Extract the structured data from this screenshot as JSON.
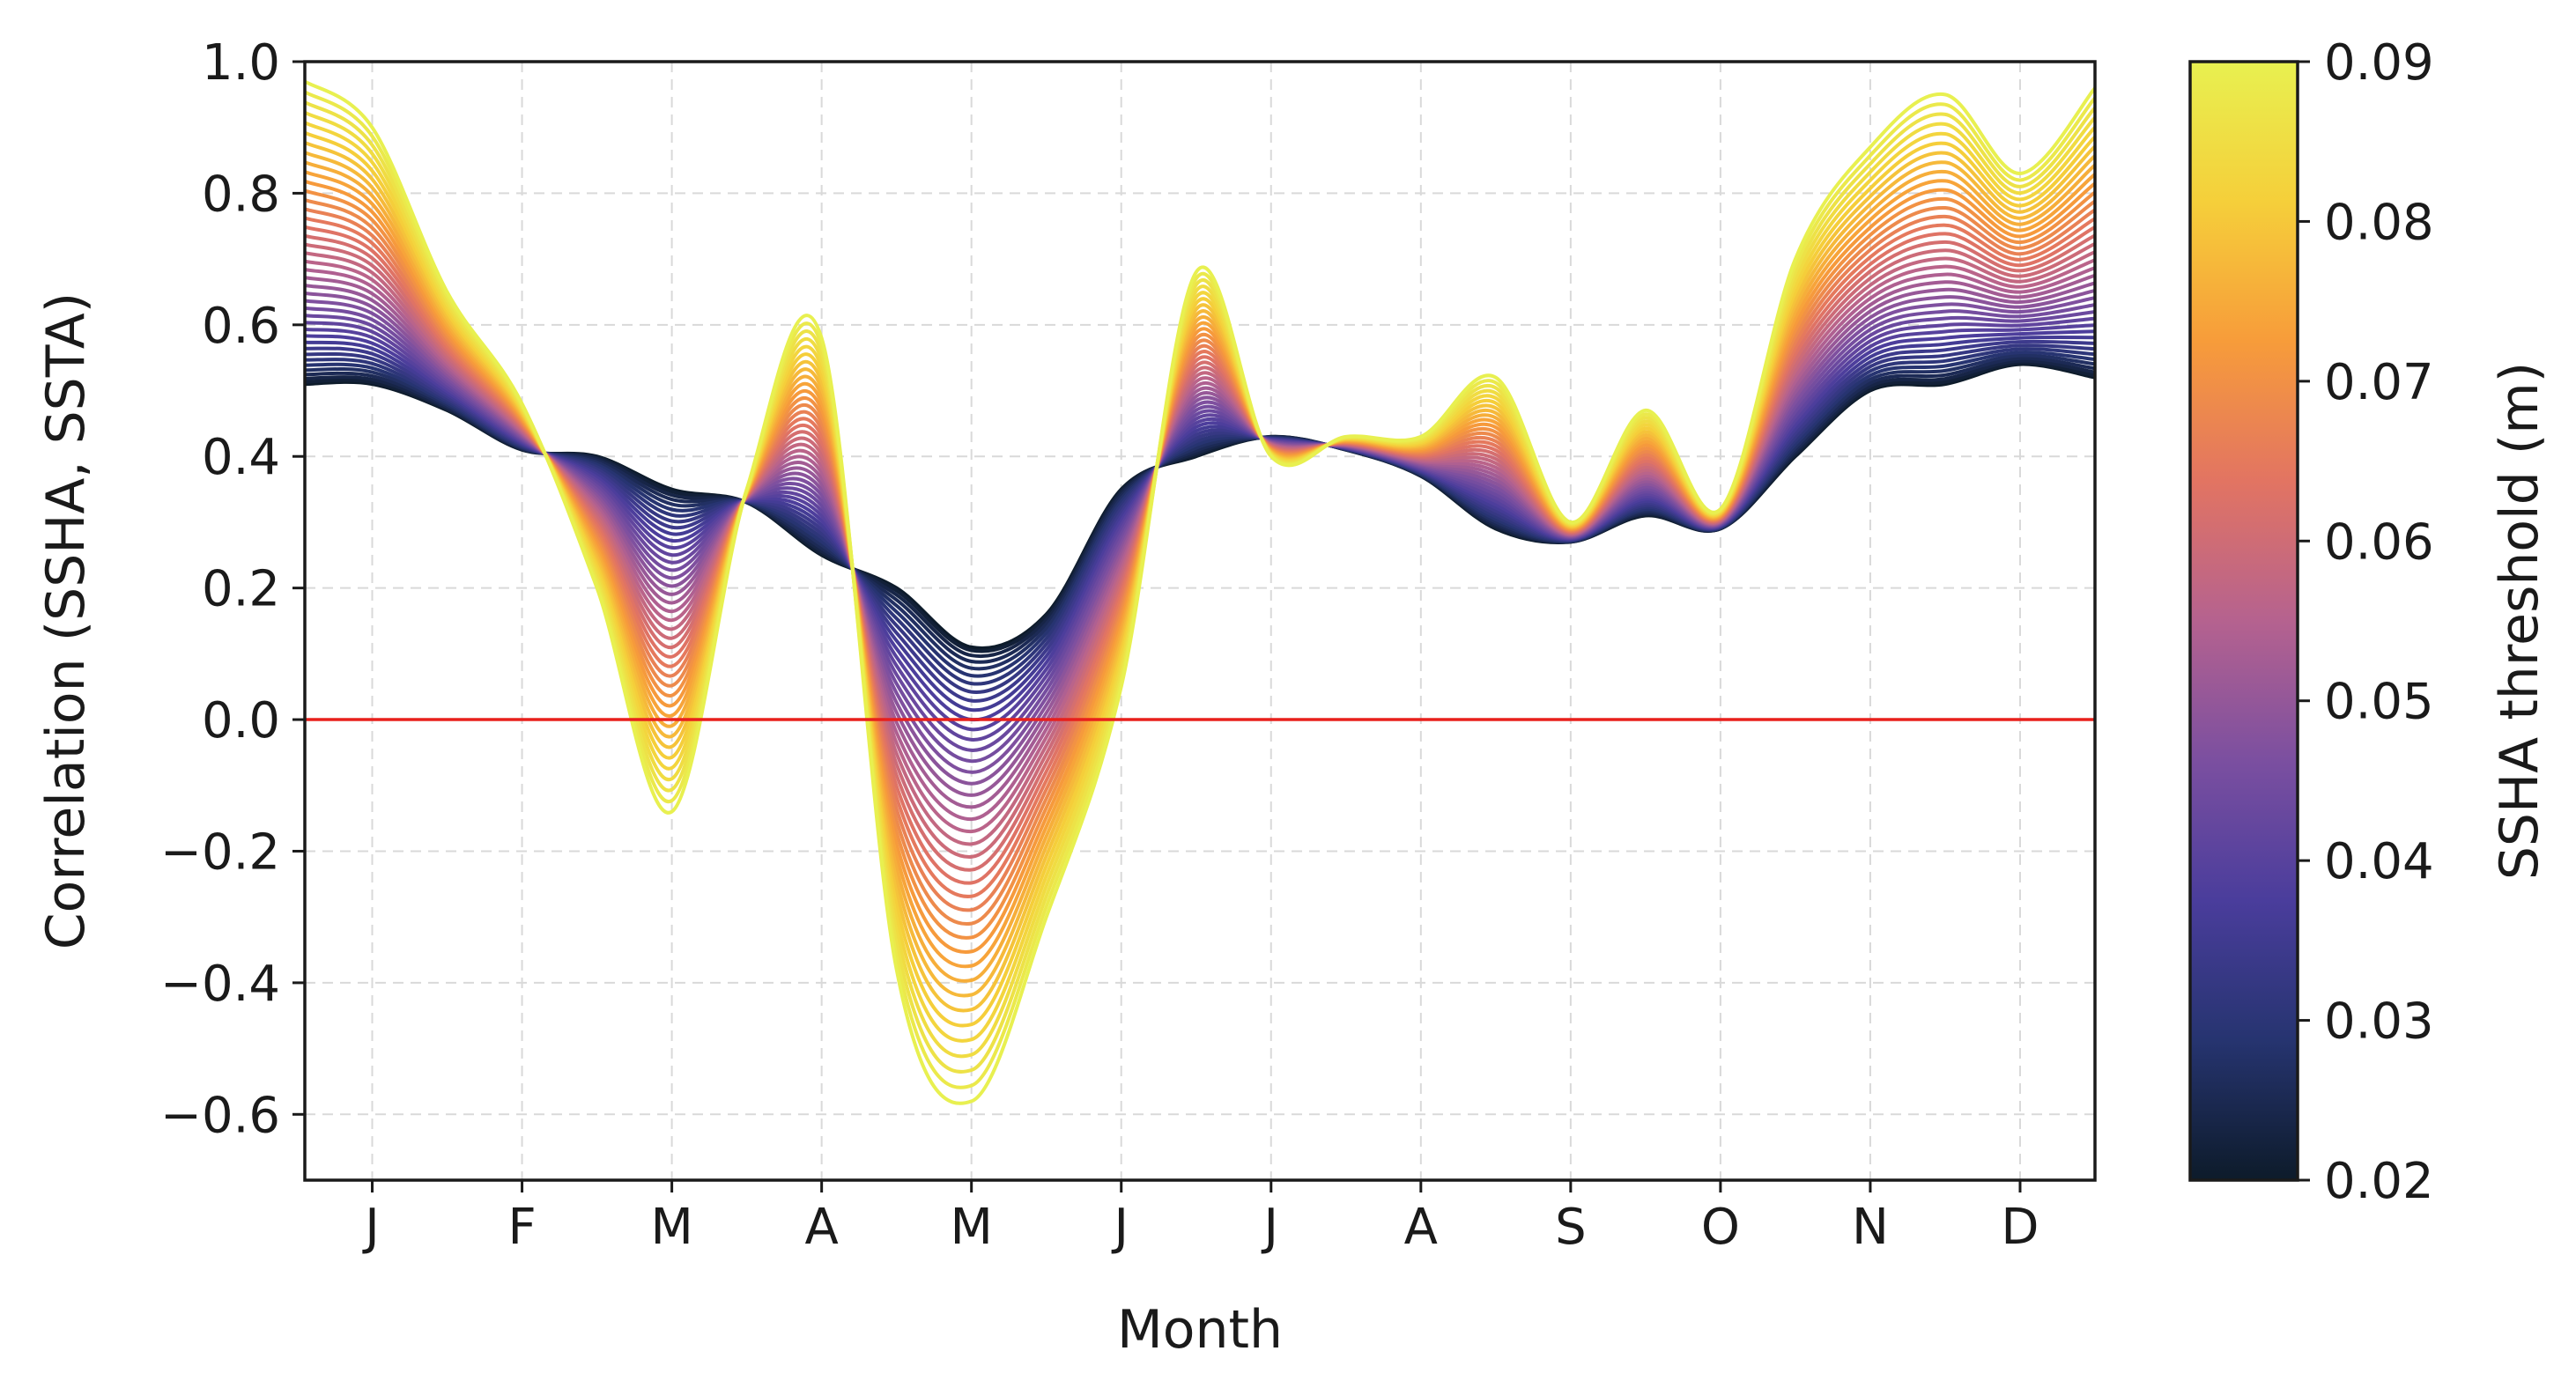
{
  "chart_data": {
    "type": "line",
    "title": "",
    "xlabel": "Month",
    "ylabel": "Correlation (SSHA, SSTA)",
    "x_tick_labels": [
      "J",
      "F",
      "M",
      "A",
      "M",
      "J",
      "J",
      "A",
      "S",
      "O",
      "N",
      "D"
    ],
    "xlim": [
      0.55,
      12.5
    ],
    "ylim": [
      -0.7,
      1.0
    ],
    "y_ticks": [
      -0.6,
      -0.4,
      -0.2,
      0.0,
      0.2,
      0.4,
      0.6,
      0.8,
      1.0
    ],
    "y_tick_labels": [
      "−0.6",
      "−0.4",
      "−0.2",
      "0.0",
      "0.2",
      "0.4",
      "0.6",
      "0.8",
      "1.0"
    ],
    "grid": true,
    "reference_line": {
      "y": 0.0,
      "color": "#e8201c"
    },
    "x_sample_points": [
      0.55,
      1.0,
      1.5,
      2.0,
      2.5,
      3.0,
      3.5,
      4.0,
      4.5,
      5.0,
      5.5,
      6.0,
      6.5,
      7.0,
      7.5,
      8.0,
      8.5,
      9.0,
      9.5,
      10.0,
      10.5,
      11.0,
      11.5,
      12.0,
      12.5
    ],
    "series_low": {
      "name": "SSHA threshold 0.02 m",
      "threshold": 0.02,
      "values": [
        0.51,
        0.51,
        0.47,
        0.41,
        0.4,
        0.35,
        0.33,
        0.25,
        0.2,
        0.11,
        0.16,
        0.35,
        0.4,
        0.43,
        0.41,
        0.37,
        0.29,
        0.27,
        0.31,
        0.29,
        0.4,
        0.5,
        0.51,
        0.54,
        0.52
      ]
    },
    "series_high": {
      "name": "SSHA threshold 0.09 m",
      "threshold": 0.09,
      "values": [
        0.97,
        0.9,
        0.65,
        0.48,
        0.2,
        -0.14,
        0.35,
        0.58,
        -0.38,
        -0.58,
        -0.3,
        0.05,
        0.68,
        0.4,
        0.43,
        0.43,
        0.52,
        0.3,
        0.47,
        0.32,
        0.7,
        0.87,
        0.95,
        0.83,
        0.96
      ]
    },
    "series_count": 40,
    "colorbar": {
      "label": "SSHA threshold (m)",
      "min": 0.02,
      "max": 0.09,
      "ticks": [
        "0.02",
        "0.03",
        "0.04",
        "0.05",
        "0.06",
        "0.07",
        "0.08",
        "0.09"
      ],
      "colors": [
        "#0d1b2a",
        "#263470",
        "#4a3d9c",
        "#7b4fa0",
        "#b5628f",
        "#e27462",
        "#f79c3a",
        "#f5cf3a",
        "#e8f050"
      ]
    }
  }
}
